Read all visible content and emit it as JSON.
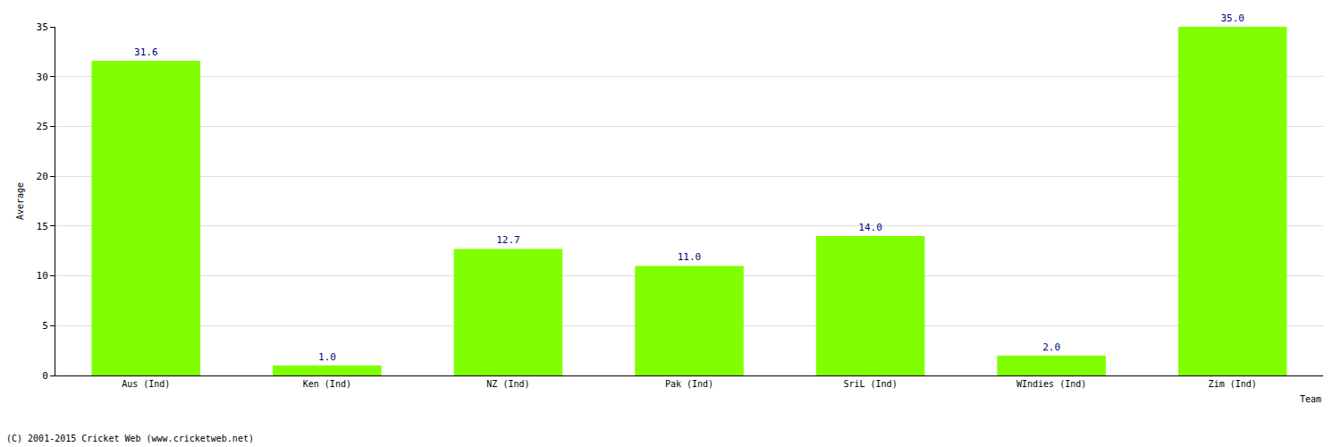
{
  "chart_data": {
    "type": "bar",
    "x_label": "Team",
    "y_label": "Average",
    "categories": [
      "Aus (Ind)",
      "Ken (Ind)",
      "NZ (Ind)",
      "Pak (Ind)",
      "SriL (Ind)",
      "WIndies (Ind)",
      "Zim (Ind)"
    ],
    "values": [
      31.6,
      1.0,
      12.7,
      11.0,
      14.0,
      2.0,
      35.0
    ],
    "value_labels": [
      "31.6",
      "1.0",
      "12.7",
      "11.0",
      "14.0",
      "2.0",
      "35.0"
    ],
    "data_labels": true,
    "color": "#80ff00",
    "ylim": [
      0,
      35
    ],
    "yticks": [
      0,
      5,
      10,
      15,
      20,
      25,
      30,
      35
    ],
    "grid": true,
    "footer": "(C) 2001-2015 Cricket Web (www.cricketweb.net)"
  }
}
